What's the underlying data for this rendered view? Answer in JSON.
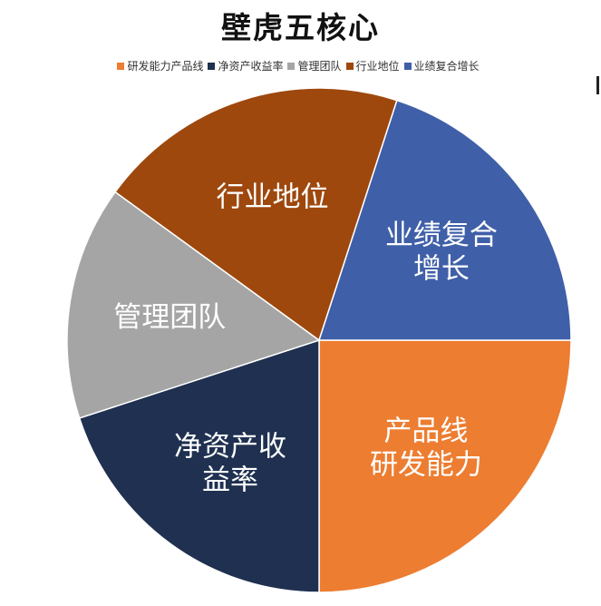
{
  "chart_data": {
    "type": "pie",
    "title": "壁虎五核心",
    "legend_position": "top",
    "categories": [
      "研发能力产品线",
      "净资产收益率",
      "管理团队",
      "行业地位",
      "业绩复合增长"
    ],
    "values": [
      25,
      20,
      15,
      20,
      20
    ],
    "colors": [
      "#ED7D31",
      "#1F3050",
      "#A5A5A5",
      "#9E480E",
      "#3F5FA8"
    ],
    "slice_labels": [
      [
        "产品线",
        "研发能力"
      ],
      [
        "净资产收",
        "益率"
      ],
      [
        "管理团队"
      ],
      [
        "行业地位"
      ],
      [
        "业绩复合",
        "增长"
      ]
    ]
  }
}
